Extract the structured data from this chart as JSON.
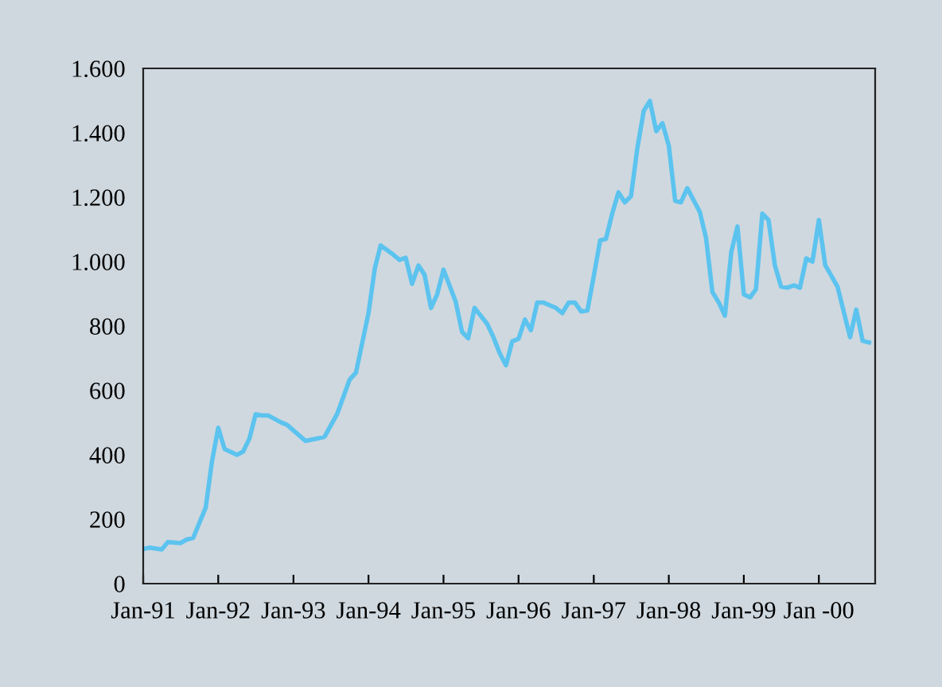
{
  "chart_data": {
    "type": "line",
    "x": [
      "1991-01",
      "1991-02",
      "1991-04",
      "1991-05",
      "1991-07",
      "1991-08",
      "1991-09",
      "1991-11",
      "1991-12",
      "1992-01",
      "1992-02",
      "1992-04",
      "1992-05",
      "1992-06",
      "1992-07",
      "1992-08",
      "1992-09",
      "1992-11",
      "1992-12",
      "1993-03",
      "1993-05",
      "1993-06",
      "1993-08",
      "1993-10",
      "1993-11",
      "1994-01",
      "1994-02",
      "1994-03",
      "1994-05",
      "1994-06",
      "1994-07",
      "1994-08",
      "1994-09",
      "1994-10",
      "1994-11",
      "1994-12",
      "1995-01",
      "1995-03",
      "1995-04",
      "1995-05",
      "1995-06",
      "1995-08",
      "1995-09",
      "1995-10",
      "1995-11",
      "1995-12",
      "1996-01",
      "1996-02",
      "1996-03",
      "1996-04",
      "1996-05",
      "1996-07",
      "1996-08",
      "1996-09",
      "1996-10",
      "1996-11",
      "1996-12",
      "1997-01",
      "1997-02",
      "1997-03",
      "1997-04",
      "1997-05",
      "1997-06",
      "1997-07",
      "1997-08",
      "1997-09",
      "1997-10",
      "1997-11",
      "1997-12",
      "1998-01",
      "1998-02",
      "1998-03",
      "1998-04",
      "1998-06",
      "1998-07",
      "1998-08",
      "1998-09",
      "1998-10",
      "1998-11",
      "1998-12",
      "1999-01",
      "1999-02",
      "1999-03",
      "1999-04",
      "1999-05",
      "1999-06",
      "1999-07",
      "1999-08",
      "1999-09",
      "1999-10",
      "1999-11",
      "1999-12",
      "2000-01",
      "2000-02",
      "2000-04",
      "2000-06",
      "2000-07",
      "2000-08",
      "2000-09"
    ],
    "series": [
      {
        "color": "#5cc3ef",
        "values": [
          107,
          112,
          106,
          129,
          126,
          137,
          142,
          236,
          377,
          484,
          418,
          400,
          410,
          451,
          526,
          522,
          522,
          501,
          493,
          443,
          451,
          456,
          526,
          633,
          655,
          840,
          980,
          1050,
          1022,
          1005,
          1012,
          931,
          988,
          959,
          856,
          898,
          975,
          876,
          782,
          762,
          856,
          807,
          765,
          716,
          678,
          752,
          760,
          820,
          787,
          873,
          873,
          856,
          840,
          873,
          873,
          845,
          848,
          955,
          1066,
          1070,
          1150,
          1215,
          1184,
          1203,
          1352,
          1468,
          1499,
          1405,
          1430,
          1360,
          1189,
          1184,
          1228,
          1154,
          1074,
          906,
          873,
          832,
          1030,
          1109,
          898,
          889,
          914,
          1149,
          1129,
          989,
          922,
          919,
          926,
          919,
          1010,
          1000,
          1129,
          989,
          922,
          765,
          851,
          754,
          749
        ]
      }
    ],
    "xlim": [
      "1991-01",
      "2000-10"
    ],
    "xticks": [
      {
        "value": "1991-01",
        "label": "Jan-91"
      },
      {
        "value": "1992-01",
        "label": "Jan-92"
      },
      {
        "value": "1993-01",
        "label": "Jan-93"
      },
      {
        "value": "1994-01",
        "label": "Jan-94"
      },
      {
        "value": "1995-01",
        "label": "Jan-95"
      },
      {
        "value": "1996-01",
        "label": "Jan-96"
      },
      {
        "value": "1997-01",
        "label": "Jan-97"
      },
      {
        "value": "1998-01",
        "label": "Jan-98"
      },
      {
        "value": "1999-01",
        "label": "Jan-99"
      },
      {
        "value": "2000-01",
        "label": "Jan -00"
      }
    ],
    "ylim": [
      0,
      1600
    ],
    "yticks": [
      0,
      {
        "value": 200,
        "label": "200"
      },
      {
        "value": 400,
        "label": "400"
      },
      {
        "value": 600,
        "label": "600"
      },
      {
        "value": 800,
        "label": "800"
      },
      {
        "value": 1000,
        "label": "1.000"
      },
      {
        "value": 1200,
        "label": "1.200"
      },
      {
        "value": 1400,
        "label": "1.400"
      },
      {
        "value": 1600,
        "label": "1.600"
      }
    ],
    "grid": false
  }
}
